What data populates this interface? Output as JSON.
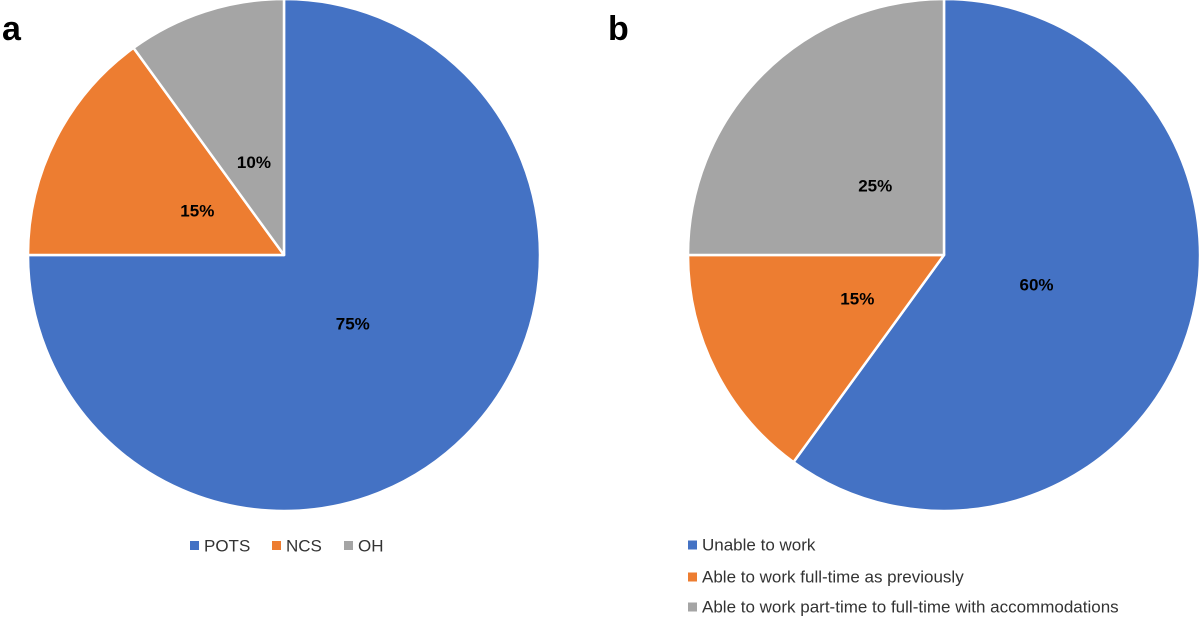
{
  "chart_data": [
    {
      "type": "pie",
      "panel": "a",
      "categories": [
        "POTS",
        "NCS",
        "OH"
      ],
      "values": [
        75,
        15,
        10
      ],
      "data_labels": [
        "75%",
        "15%",
        "10%"
      ],
      "colors": [
        "#4472C4",
        "#ED7D31",
        "#A5A5A5"
      ],
      "legend": {
        "entries": [
          "POTS",
          "NCS",
          "OH"
        ],
        "placement": "bottom-horizontal"
      },
      "start_angle_deg": 0,
      "direction": "clockwise"
    },
    {
      "type": "pie",
      "panel": "b",
      "categories": [
        "Unable to work",
        "Able to work full-time as previously",
        "Able to work part-time to full-time with accommodations"
      ],
      "values": [
        60,
        15,
        25
      ],
      "data_labels": [
        "60%",
        "15%",
        "25%"
      ],
      "colors": [
        "#4472C4",
        "#ED7D31",
        "#A5A5A5"
      ],
      "legend": {
        "entries": [
          "Unable to work",
          "Able to work full-time as previously",
          "Able to work part-time to full-time with accommodations"
        ],
        "placement": "bottom-vertical"
      },
      "start_angle_deg": 0,
      "direction": "clockwise"
    }
  ]
}
